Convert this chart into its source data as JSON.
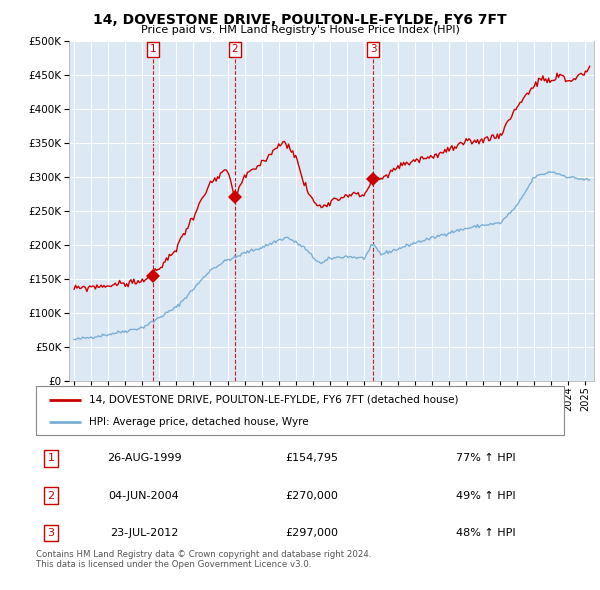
{
  "title": "14, DOVESTONE DRIVE, POULTON-LE-FYLDE, FY6 7FT",
  "subtitle": "Price paid vs. HM Land Registry's House Price Index (HPI)",
  "legend_property": "14, DOVESTONE DRIVE, POULTON-LE-FYLDE, FY6 7FT (detached house)",
  "legend_hpi": "HPI: Average price, detached house, Wyre",
  "sales": [
    {
      "label": "1",
      "date_x": 1999.65,
      "price": 154795
    },
    {
      "label": "2",
      "date_x": 2004.42,
      "price": 270000
    },
    {
      "label": "3",
      "date_x": 2012.55,
      "price": 297000
    }
  ],
  "sale_annotations": [
    {
      "label": "1",
      "date_str": "26-AUG-1999",
      "price_str": "£154,795",
      "pct": "77% ↑ HPI"
    },
    {
      "label": "2",
      "date_str": "04-JUN-2004",
      "price_str": "£270,000",
      "pct": "49% ↑ HPI"
    },
    {
      "label": "3",
      "date_str": "23-JUL-2012",
      "price_str": "£297,000",
      "pct": "48% ↑ HPI"
    }
  ],
  "footnote": "Contains HM Land Registry data © Crown copyright and database right 2024.\nThis data is licensed under the Open Government Licence v3.0.",
  "property_color": "#cc0000",
  "hpi_color": "#7bafd4",
  "background_color": "#ffffff",
  "chart_bg_color": "#dce9f5",
  "grid_color": "#ffffff",
  "ylim": [
    0,
    500000
  ],
  "yticks": [
    0,
    50000,
    100000,
    150000,
    200000,
    250000,
    300000,
    350000,
    400000,
    450000,
    500000
  ],
  "xmin": 1994.7,
  "xmax": 2025.5,
  "hpi_anchors": {
    "1995.0": 60000,
    "1996.0": 64000,
    "1997.0": 68000,
    "1998.0": 73000,
    "1999.0": 78000,
    "1999.65": 87500,
    "2000.0": 93000,
    "2001.0": 108000,
    "2002.0": 135000,
    "2003.0": 163000,
    "2004.0": 178000,
    "2004.42": 181000,
    "2005.0": 188000,
    "2006.0": 196000,
    "2007.0": 207000,
    "2007.5": 211000,
    "2008.5": 196000,
    "2009.0": 182000,
    "2009.5": 172000,
    "2010.0": 180000,
    "2011.0": 183000,
    "2012.0": 180000,
    "2012.55": 200500,
    "2013.0": 186000,
    "2014.0": 194000,
    "2015.0": 203000,
    "2016.0": 210000,
    "2017.0": 218000,
    "2018.0": 224000,
    "2019.0": 229000,
    "2020.0": 232000,
    "2021.0": 258000,
    "2022.0": 300000,
    "2023.0": 308000,
    "2024.0": 300000,
    "2025.3": 295000
  },
  "prop_anchors": {
    "1995.0": 135000,
    "1996.0": 138000,
    "1997.0": 140000,
    "1998.0": 143000,
    "1999.0": 147000,
    "1999.65": 154795,
    "2000.0": 165000,
    "2001.0": 195000,
    "2002.0": 243000,
    "2003.0": 290000,
    "2004.0": 310000,
    "2004.42": 270000,
    "2005.0": 300000,
    "2006.0": 320000,
    "2007.0": 348000,
    "2007.5": 350000,
    "2008.0": 330000,
    "2008.5": 290000,
    "2009.0": 265000,
    "2009.5": 255000,
    "2010.0": 265000,
    "2010.5": 268000,
    "2011.0": 275000,
    "2012.0": 273000,
    "2012.55": 297000,
    "2013.0": 295000,
    "2013.5": 305000,
    "2014.0": 315000,
    "2015.0": 325000,
    "2016.0": 330000,
    "2017.0": 340000,
    "2018.0": 350000,
    "2019.0": 355000,
    "2020.0": 362000,
    "2021.0": 405000,
    "2022.0": 435000,
    "2022.5": 445000,
    "2023.0": 440000,
    "2023.5": 450000,
    "2024.0": 440000,
    "2025.3": 460000
  }
}
